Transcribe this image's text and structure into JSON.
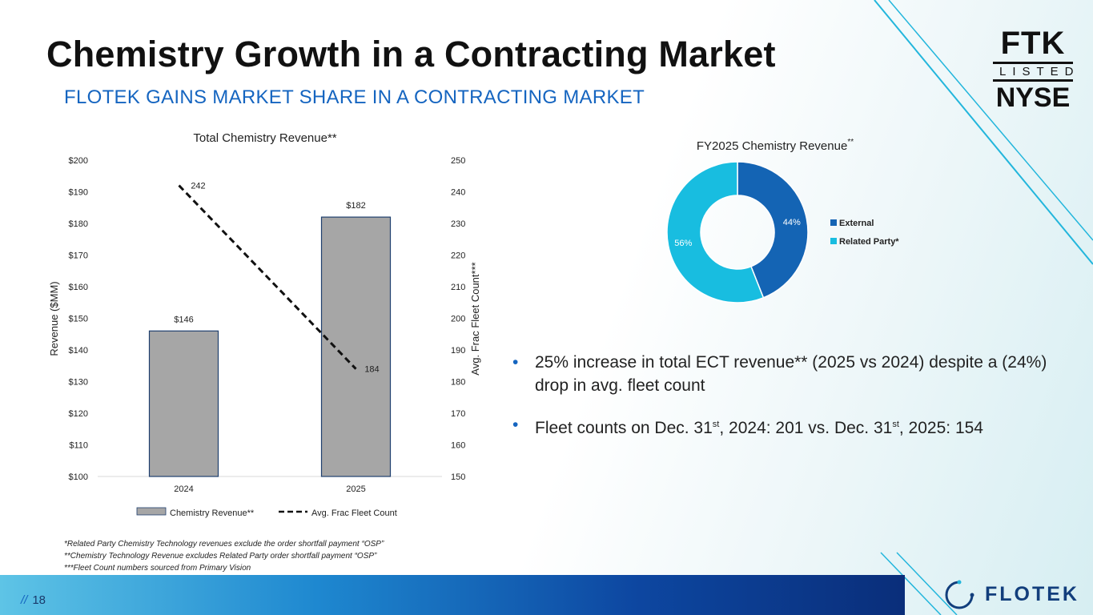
{
  "title": "Chemistry Growth in a Contracting Market",
  "subtitle": "FLOTEK GAINS MARKET SHARE IN A CONTRACTING MARKET",
  "logo": {
    "line1": "FTK",
    "line2": "LISTED",
    "line3": "NYSE"
  },
  "brand": {
    "name": "FLOTEK"
  },
  "page": {
    "separator": "//",
    "number": "18"
  },
  "bullets": [
    {
      "text": "25% increase in total ECT revenue** (2025 vs 2024) despite a (24%) drop in avg. fleet count"
    },
    {
      "pre1": "Fleet counts on Dec. 31",
      "sup1": "st",
      "mid": ", 2024: 201 vs. Dec. 31",
      "sup2": "st",
      "post": ", 2025: 154"
    }
  ],
  "footnotes": [
    "*Related Party Chemistry Technology revenues exclude the order shortfall payment “OSP”",
    "**Chemistry Technology Revenue excludes Related Party order shortfall payment “OSP”",
    "***Fleet Count numbers sourced from Primary Vision"
  ],
  "colors": {
    "bar": "#a6a6a6",
    "bar_border": "#1f3f6e",
    "line": "#111111",
    "external": "#1464b4",
    "related": "#18bde0",
    "accent": "#1565c0"
  },
  "chart_data": [
    {
      "type": "bar",
      "title": "Total Chemistry Revenue**",
      "categories": [
        "2024",
        "2025"
      ],
      "series": [
        {
          "name": "Chemistry Revenue**",
          "type": "bar",
          "axis": "left",
          "values": [
            146,
            182
          ],
          "labels": [
            "$146",
            "$182"
          ]
        },
        {
          "name": "Avg. Frac Fleet Count",
          "type": "line",
          "style": "dashed",
          "axis": "right",
          "values": [
            242,
            184
          ],
          "labels": [
            "242",
            "184"
          ]
        }
      ],
      "ylabel": "Revenue ($MM)",
      "ylabel_right": "Avg. Frac Fleet Count***",
      "ylim": [
        100,
        200
      ],
      "ylim_right": [
        150,
        250
      ],
      "yticks": [
        "$100",
        "$110",
        "$120",
        "$130",
        "$140",
        "$150",
        "$160",
        "$170",
        "$180",
        "$190",
        "$200"
      ],
      "yticks_right": [
        "150",
        "160",
        "170",
        "180",
        "190",
        "200",
        "210",
        "220",
        "230",
        "240",
        "250"
      ],
      "legend": "bottom"
    },
    {
      "type": "pie",
      "style": "donut",
      "title": "FY2025 Chemistry Revenue",
      "title_sup": "**",
      "labels": [
        "External",
        "Related Party*"
      ],
      "values": [
        44,
        56
      ],
      "value_labels": [
        "44%",
        "56%"
      ],
      "legend": "right"
    }
  ]
}
